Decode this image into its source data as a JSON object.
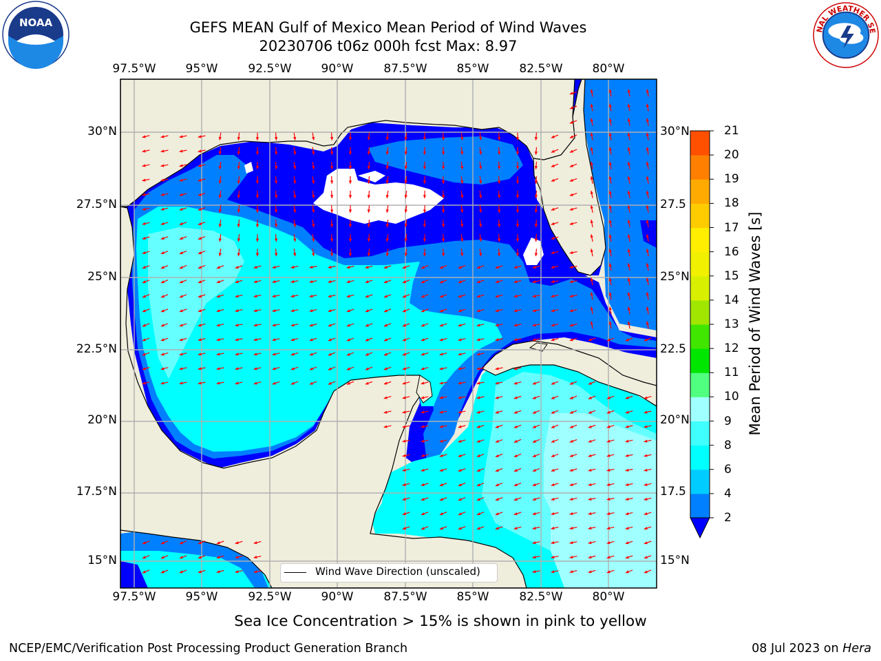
{
  "title_line1": "GEFS MEAN Gulf of Mexico Mean Period of Wind Waves",
  "title_line2": "20230706 t06z 000h fcst   Max: 8.97",
  "x_ticks": [
    "97.5°W",
    "95°W",
    "92.5°W",
    "90°W",
    "87.5°W",
    "85°W",
    "82.5°W",
    "80°W"
  ],
  "y_ticks_left": [
    "30°N",
    "27.5°N",
    "25°N",
    "22.5°N",
    "20°N",
    "17.5°N",
    "15°N"
  ],
  "y_ticks_right": [
    "30°N",
    "27.5",
    "25°N",
    "22.5",
    "20°N",
    "17.5",
    "15°N"
  ],
  "legend_label": "Wind Wave Direction (unscaled)",
  "colorbar": {
    "label": "Mean Period of Wind Waves [s]",
    "ticks": [
      "2",
      "4",
      "6",
      "8",
      "9",
      "10",
      "11",
      "12",
      "13",
      "14",
      "15",
      "16",
      "17",
      "18",
      "19",
      "20",
      "21"
    ],
    "colors": [
      "#0080ff",
      "#00ccff",
      "#00ffff",
      "#40ffff",
      "#a0ffff",
      "#50ff80",
      "#00e600",
      "#40e600",
      "#a0e600",
      "#d8f000",
      "#f0f000",
      "#ffee00",
      "#ffcc00",
      "#ffaa00",
      "#ff8000",
      "#ff5000",
      "#ff3000",
      "#ff0000"
    ],
    "extend_color": "#0000ff"
  },
  "bottom_note": "Sea Ice Concentration > 15% is shown in pink to yellow",
  "footer_left": "NCEP/EMC/Verification Post Processing Product Generation Branch",
  "footer_date": "08 Jul 2023 on ",
  "footer_host": "Hera",
  "logo_left_text": "NOAA",
  "logo_right_text": "NATIONAL WEATHER SERVICE",
  "colors": {
    "land": "#efeddc",
    "wave_3s": "#0000ff",
    "wave_4s": "#0080ff",
    "wave_5s": "#00ffff",
    "wave_7s": "#66ffff",
    "wave_9s": "#a0ffff",
    "arrow": "#ff0000",
    "grid": "#b0b0b0"
  }
}
